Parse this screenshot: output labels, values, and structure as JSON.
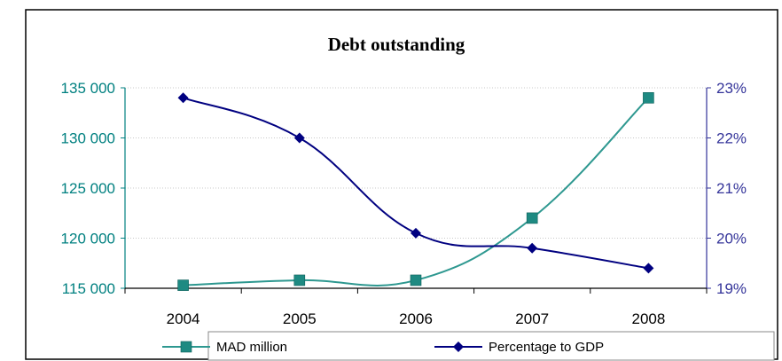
{
  "colors": {
    "mad_series": "#2E9890",
    "mad_marker": "#1E8A82",
    "gdp_series": "#000080",
    "left_axis": "#008080",
    "right_axis": "#333399",
    "grid": "#c8c8c8",
    "frame": "#000000"
  },
  "chart_data": {
    "type": "line",
    "title": "Debt outstanding",
    "categories": [
      "2004",
      "2005",
      "2006",
      "2007",
      "2008"
    ],
    "y_left": {
      "ylim": [
        115000,
        135000
      ],
      "ticks": [
        "115 000",
        "120 000",
        "125 000",
        "130 000",
        "135 000"
      ],
      "tick_values": [
        115000,
        120000,
        125000,
        130000,
        135000
      ]
    },
    "y_right": {
      "ylim": [
        19,
        23
      ],
      "ticks": [
        "19%",
        "20%",
        "21%",
        "22%",
        "23%"
      ],
      "tick_values": [
        19,
        20,
        21,
        22,
        23
      ]
    },
    "grid": true,
    "legend_position": "bottom",
    "series": [
      {
        "name": "MAD million",
        "axis": "left",
        "marker": "square",
        "values": [
          115300,
          115800,
          115800,
          122000,
          134000
        ]
      },
      {
        "name": "Percentage to GDP",
        "axis": "right",
        "marker": "diamond",
        "values": [
          22.8,
          22.0,
          20.1,
          19.8,
          19.4
        ]
      }
    ]
  }
}
